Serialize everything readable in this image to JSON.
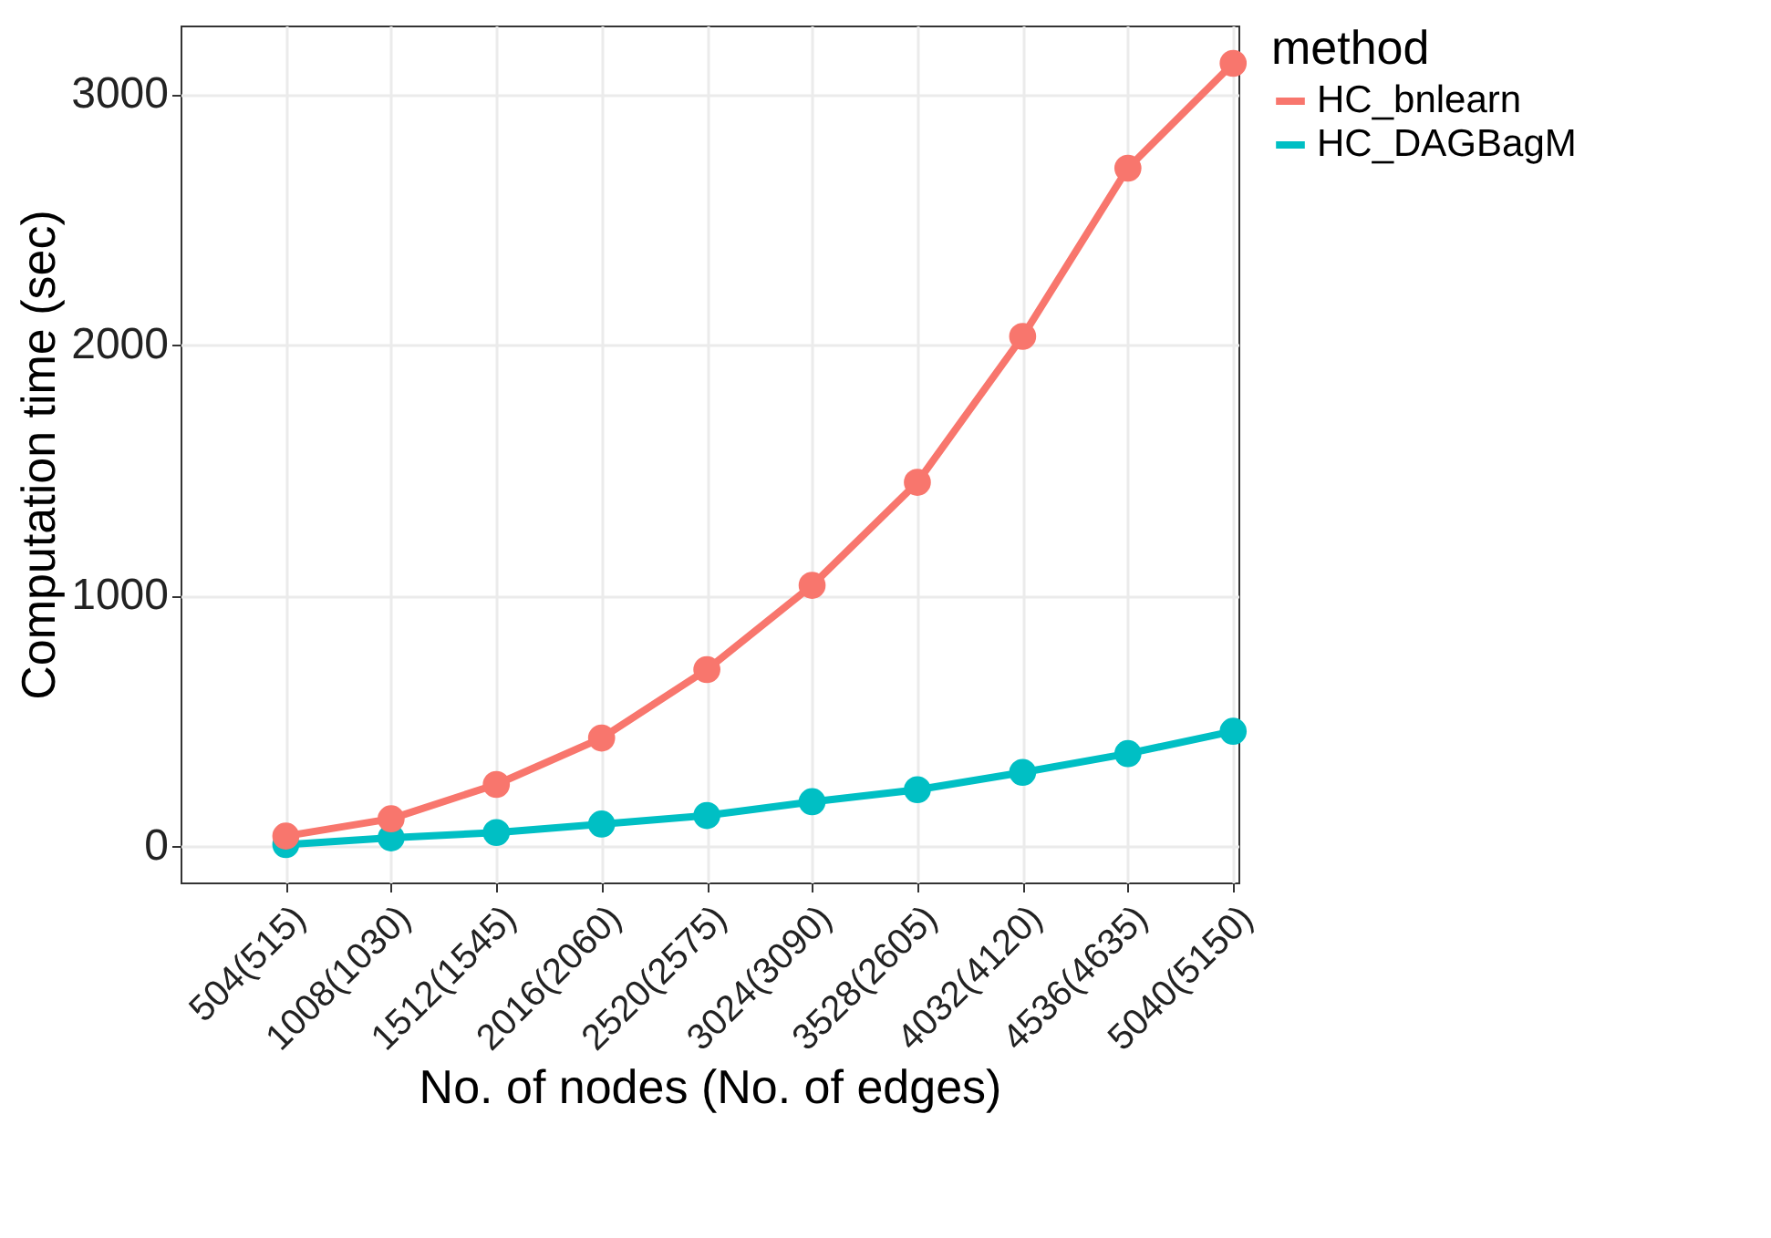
{
  "chart_data": {
    "type": "line",
    "xlabel": "No. of nodes (No. of edges)",
    "ylabel": "Computation time (sec)",
    "legend_title": "method",
    "categories": [
      "504(515)",
      "1008(1030)",
      "1512(1545)",
      "2016(2060)",
      "2520(2575)",
      "3024(3090)",
      "3528(2605)",
      "4032(4120)",
      "4536(4635)",
      "5040(5150)"
    ],
    "series": [
      {
        "name": "HC_bnlearn",
        "color": "#f8766d",
        "values": [
          41,
          110,
          247,
          432,
          705,
          1041,
          1452,
          2034,
          2705,
          3123
        ]
      },
      {
        "name": "HC_DAGBagM",
        "color": "#00bfc4",
        "values": [
          7,
          34,
          55,
          89,
          123,
          178,
          226,
          295,
          370,
          459
        ]
      }
    ],
    "ylim": [
      -144,
      3274
    ],
    "yticks": [
      0,
      1000,
      2000,
      3000
    ],
    "grid": true,
    "legend": "right",
    "marker": "circle",
    "line_style": "solid"
  }
}
